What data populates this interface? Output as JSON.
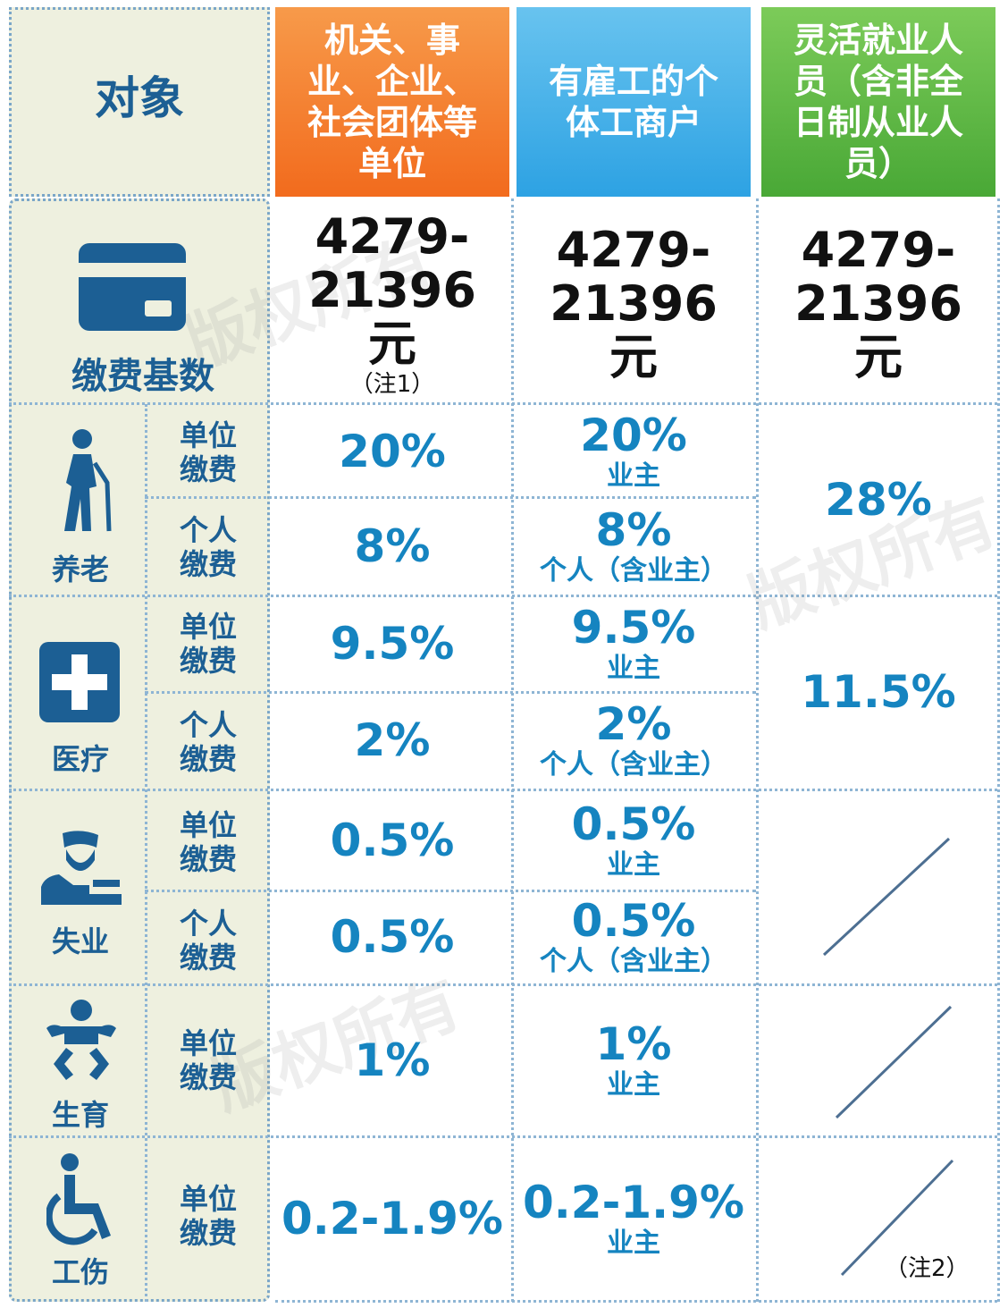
{
  "header": {
    "subject_label": "对象",
    "col1": "机关、事业、企业、社会团体等单位",
    "col2": "有雇工的个体工商户",
    "col3": "灵活就业人员（含非全日制从业人员）"
  },
  "base": {
    "label": "缴费基数",
    "col1": "4279-21396元",
    "col1_note": "（注1）",
    "col2": "4279-21396元",
    "col3": "4279-21396元"
  },
  "payer": {
    "unit": "单位缴费",
    "personal": "个人缴费"
  },
  "pension": {
    "label": "养老",
    "unit_col1": "20%",
    "personal_col1": "8%",
    "unit_col2": "20%",
    "unit_col2_sub": "业主",
    "personal_col2": "8%",
    "personal_col2_sub": "个人（含业主）",
    "col3": "28%"
  },
  "medical": {
    "label": "医疗",
    "unit_col1": "9.5%",
    "personal_col1": "2%",
    "unit_col2": "9.5%",
    "unit_col2_sub": "业主",
    "personal_col2": "2%",
    "personal_col2_sub": "个人（含业主）",
    "col3": "11.5%"
  },
  "unemployment": {
    "label": "失业",
    "unit_col1": "0.5%",
    "personal_col1": "0.5%",
    "unit_col2": "0.5%",
    "unit_col2_sub": "业主",
    "personal_col2": "0.5%",
    "personal_col2_sub": "个人（含业主）"
  },
  "maternity": {
    "label": "生育",
    "unit_col1": "1%",
    "unit_col2": "1%",
    "unit_col2_sub": "业主"
  },
  "injury": {
    "label": "工伤",
    "unit_col1": "0.2-1.9%",
    "unit_col2": "0.2-1.9%",
    "unit_col2_sub": "业主",
    "col3_note": "（注2）"
  },
  "watermark": "版权所有",
  "colors": {
    "orange": "#f26b1d",
    "blue": "#2da2e3",
    "green": "#56b443",
    "text_blue": "#1584c0",
    "label_blue": "#1c5f94",
    "beige": "#eef0df"
  },
  "icons": [
    "card-icon",
    "elderly-icon",
    "medical-cross-icon",
    "unemployed-icon",
    "baby-icon",
    "wheelchair-icon"
  ]
}
